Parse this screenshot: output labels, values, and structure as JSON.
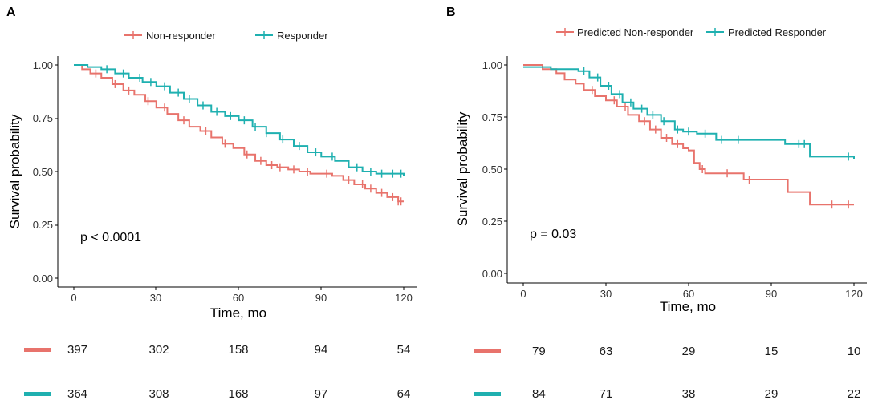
{
  "chart_data": [
    {
      "type": "line",
      "panel_label": "A",
      "xlabel": "Time, mo",
      "ylabel": "Survival probability",
      "xlim": [
        0,
        120
      ],
      "ylim": [
        0,
        1
      ],
      "xticks": [
        "0",
        "30",
        "60",
        "90",
        "120"
      ],
      "yticks": [
        "0.00",
        "0.25",
        "0.50",
        "0.75",
        "1.00"
      ],
      "annotation": "p < 0.0001",
      "legend_position": "top",
      "series": [
        {
          "name": "Non-responder",
          "color": "#E8736C",
          "x": [
            0,
            3,
            6,
            10,
            14,
            18,
            22,
            26,
            30,
            34,
            38,
            42,
            46,
            50,
            54,
            58,
            62,
            66,
            70,
            74,
            78,
            82,
            86,
            90,
            94,
            98,
            102,
            106,
            110,
            114,
            118,
            120
          ],
          "y": [
            1.0,
            0.98,
            0.96,
            0.94,
            0.91,
            0.88,
            0.86,
            0.83,
            0.8,
            0.77,
            0.74,
            0.71,
            0.69,
            0.66,
            0.63,
            0.61,
            0.58,
            0.55,
            0.53,
            0.52,
            0.51,
            0.5,
            0.49,
            0.49,
            0.48,
            0.46,
            0.44,
            0.42,
            0.4,
            0.38,
            0.36,
            0.36
          ],
          "censor_x": [
            8,
            15,
            20,
            27,
            33,
            40,
            48,
            55,
            63,
            68,
            72,
            75,
            80,
            85,
            92,
            100,
            105,
            108,
            112,
            116,
            118,
            119
          ]
        },
        {
          "name": "Responder",
          "color": "#1FB0B0",
          "x": [
            0,
            5,
            10,
            15,
            20,
            25,
            30,
            35,
            40,
            45,
            50,
            55,
            60,
            65,
            70,
            75,
            80,
            85,
            90,
            95,
            100,
            105,
            110,
            115,
            120
          ],
          "y": [
            1.0,
            0.99,
            0.98,
            0.96,
            0.94,
            0.92,
            0.9,
            0.87,
            0.84,
            0.81,
            0.78,
            0.76,
            0.74,
            0.71,
            0.68,
            0.65,
            0.62,
            0.59,
            0.57,
            0.55,
            0.52,
            0.5,
            0.49,
            0.49,
            0.48
          ],
          "censor_x": [
            12,
            18,
            24,
            28,
            33,
            38,
            42,
            47,
            52,
            57,
            62,
            66,
            70,
            76,
            82,
            88,
            94,
            103,
            108,
            112,
            116,
            119
          ]
        }
      ],
      "risk_table": {
        "rows": [
          {
            "name": "Non-responder",
            "color": "#E8736C",
            "counts": [
              "397",
              "302",
              "158",
              "94",
              "54"
            ]
          },
          {
            "name": "Responder",
            "color": "#1FB0B0",
            "counts": [
              "364",
              "308",
              "168",
              "97",
              "64"
            ]
          }
        ]
      }
    },
    {
      "type": "line",
      "panel_label": "B",
      "xlabel": "Time, mo",
      "ylabel": "Survival probability",
      "xlim": [
        0,
        120
      ],
      "ylim": [
        0,
        1
      ],
      "xticks": [
        "0",
        "30",
        "60",
        "90",
        "120"
      ],
      "yticks": [
        "0.00",
        "0.25",
        "0.50",
        "0.75",
        "1.00"
      ],
      "annotation": "p = 0.03",
      "legend_position": "top",
      "series": [
        {
          "name": "Predicted Non-responder",
          "color": "#E8736C",
          "x": [
            0,
            7,
            12,
            15,
            19,
            22,
            26,
            30,
            34,
            38,
            42,
            46,
            50,
            54,
            58,
            60,
            62,
            64,
            66,
            70,
            80,
            90,
            96,
            104,
            110,
            120
          ],
          "y": [
            1.0,
            0.98,
            0.96,
            0.93,
            0.91,
            0.88,
            0.85,
            0.83,
            0.8,
            0.76,
            0.73,
            0.69,
            0.65,
            0.62,
            0.6,
            0.59,
            0.53,
            0.5,
            0.48,
            0.48,
            0.45,
            0.45,
            0.39,
            0.33,
            0.33,
            0.33
          ],
          "censor_x": [
            25,
            33,
            37,
            44,
            48,
            52,
            56,
            65,
            74,
            82,
            112,
            118
          ]
        },
        {
          "name": "Predicted Responder",
          "color": "#1FB0B0",
          "x": [
            0,
            10,
            20,
            24,
            28,
            32,
            36,
            40,
            45,
            50,
            55,
            58,
            63,
            70,
            80,
            90,
            95,
            100,
            104,
            120
          ],
          "y": [
            0.99,
            0.98,
            0.97,
            0.94,
            0.9,
            0.86,
            0.82,
            0.79,
            0.76,
            0.73,
            0.69,
            0.68,
            0.67,
            0.64,
            0.64,
            0.64,
            0.62,
            0.62,
            0.56,
            0.55
          ],
          "censor_x": [
            22,
            27,
            31,
            35,
            39,
            43,
            47,
            51,
            56,
            60,
            66,
            72,
            78,
            100,
            102,
            118
          ]
        }
      ],
      "risk_table": {
        "rows": [
          {
            "name": "Predicted Non-responder",
            "color": "#E8736C",
            "counts": [
              "79",
              "63",
              "29",
              "15",
              "10"
            ]
          },
          {
            "name": "Predicted Responder",
            "color": "#1FB0B0",
            "counts": [
              "84",
              "71",
              "38",
              "29",
              "22"
            ]
          }
        ]
      }
    }
  ]
}
